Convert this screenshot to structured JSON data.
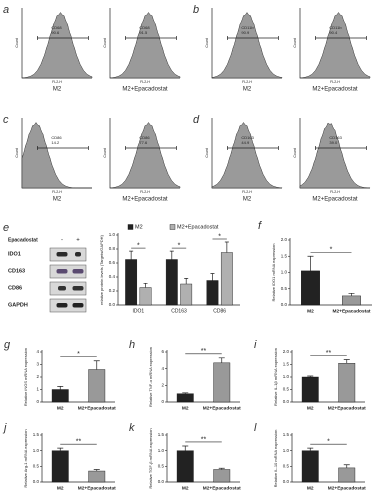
{
  "flow": [
    {
      "letter": "a",
      "ylabel": "Count",
      "xlabel": "FL2-H",
      "plots": [
        {
          "marker": "CD68",
          "percent": "90.6",
          "caption": "M2"
        },
        {
          "marker": "CD68",
          "percent": "91.5",
          "caption": "M2+Epacadostat"
        }
      ]
    },
    {
      "letter": "b",
      "ylabel": "Count",
      "xlabel": "FL2-H",
      "plots": [
        {
          "marker": "CD11b",
          "percent": "90.9",
          "caption": "M2"
        },
        {
          "marker": "CD11b",
          "percent": "90.4",
          "caption": "M2+Epacadostat"
        }
      ]
    },
    {
      "letter": "c",
      "ylabel": "Count",
      "xlabel": "FL2-H",
      "plots": [
        {
          "marker": "CD86",
          "percent": "14.2",
          "caption": "M2"
        },
        {
          "marker": "CD86",
          "percent": "77.6",
          "caption": "M2+Epacadostat"
        }
      ]
    },
    {
      "letter": "d",
      "ylabel": "Count",
      "xlabel": "FL2-H",
      "plots": [
        {
          "marker": "CD163",
          "percent": "44.9",
          "caption": "M2"
        },
        {
          "marker": "CD163",
          "percent": "39.0",
          "caption": "M2+Epacadostat"
        }
      ]
    }
  ],
  "blot": {
    "letter": "e",
    "treatment": "Epacadostat",
    "lanes": [
      "-",
      "+"
    ],
    "rows": [
      "IDO1",
      "CD163",
      "CD86",
      "GAPDH"
    ]
  },
  "chart_data": [
    {
      "type": "grouped-bar",
      "ylabel": "relative protein levels (Targets/GAPDH)",
      "categories": [
        "IDO1",
        "CD163",
        "CD86"
      ],
      "series": [
        {
          "name": "M2",
          "color": "#222222",
          "values": [
            0.65,
            0.65,
            0.35
          ],
          "errors": [
            0.12,
            0.12,
            0.1
          ]
        },
        {
          "name": "M2+Epacadostat",
          "color": "#b0b0b0",
          "values": [
            0.25,
            0.3,
            0.75
          ],
          "errors": [
            0.06,
            0.08,
            0.15
          ]
        }
      ],
      "ylim": [
        0,
        1
      ],
      "yticks": [
        {
          "value": 0,
          "label": "0.0"
        },
        {
          "value": 0.2,
          "label": "0.2"
        },
        {
          "value": 0.4,
          "label": "0.4"
        },
        {
          "value": 0.6,
          "label": "0.6"
        },
        {
          "value": 0.8,
          "label": "0.8"
        },
        {
          "value": 1,
          "label": "1.0"
        }
      ],
      "significance": [
        "*",
        "*",
        "*"
      ]
    },
    {
      "type": "bar",
      "letter": "f",
      "ylabel": "Relative IDO1 mRNA expression",
      "categories": [
        "M2",
        "M2+Epacadostat"
      ],
      "values": [
        1.05,
        0.28
      ],
      "errors": [
        0.45,
        0.08
      ],
      "colors": [
        "#222222",
        "#999999"
      ],
      "ylim": [
        0,
        2
      ],
      "yticks": [
        {
          "value": 0,
          "label": "0.0"
        },
        {
          "value": 0.5,
          "label": "0.5"
        },
        {
          "value": 1,
          "label": "1.0"
        },
        {
          "value": 1.5,
          "label": "1.5"
        },
        {
          "value": 2,
          "label": "2.0"
        }
      ],
      "significance": "*"
    },
    {
      "type": "bar",
      "letter": "g",
      "ylabel": "Relative iNOS mRNA expression",
      "categories": [
        "M2",
        "M2+Epacadostat"
      ],
      "values": [
        1.0,
        2.6
      ],
      "errors": [
        0.25,
        0.7
      ],
      "colors": [
        "#222222",
        "#999999"
      ],
      "ylim": [
        0,
        4
      ],
      "yticks": [
        0,
        1,
        2,
        3,
        4
      ],
      "significance": "*"
    },
    {
      "type": "bar",
      "letter": "h",
      "ylabel": "Relative TNF-α mRNA expression",
      "categories": [
        "M2",
        "M2+Epacadostat"
      ],
      "values": [
        1.0,
        4.7
      ],
      "errors": [
        0.1,
        0.6
      ],
      "colors": [
        "#222222",
        "#999999"
      ],
      "ylim": [
        0,
        6
      ],
      "yticks": [
        0,
        2,
        4,
        6
      ],
      "significance": "**"
    },
    {
      "type": "bar",
      "letter": "i",
      "ylabel": "Relative IL-1β mRNA expression",
      "categories": [
        "M2",
        "M2+Epacadostat"
      ],
      "values": [
        1.0,
        1.55
      ],
      "errors": [
        0.04,
        0.15
      ],
      "colors": [
        "#222222",
        "#999999"
      ],
      "ylim": [
        0,
        2
      ],
      "yticks": [
        {
          "value": 0,
          "label": "0.0"
        },
        {
          "value": 0.5,
          "label": "0.5"
        },
        {
          "value": 1,
          "label": "1.0"
        },
        {
          "value": 1.5,
          "label": "1.5"
        },
        {
          "value": 2,
          "label": "2.0"
        }
      ],
      "significance": "**"
    },
    {
      "type": "bar",
      "letter": "j",
      "ylabel": "Relative Arg-1 mRNA expression",
      "categories": [
        "M2",
        "M2+Epacadostat"
      ],
      "values": [
        1.0,
        0.35
      ],
      "errors": [
        0.08,
        0.05
      ],
      "colors": [
        "#222222",
        "#999999"
      ],
      "ylim": [
        0,
        1.5
      ],
      "yticks": [
        {
          "value": 0,
          "label": "0.0"
        },
        {
          "value": 0.5,
          "label": "0.5"
        },
        {
          "value": 1,
          "label": "1.0"
        },
        {
          "value": 1.5,
          "label": "1.5"
        }
      ],
      "significance": "**"
    },
    {
      "type": "bar",
      "letter": "k",
      "ylabel": "Relative TGF-β mRNA expression",
      "categories": [
        "M2",
        "M2+Epacadostat"
      ],
      "values": [
        1.0,
        0.4
      ],
      "errors": [
        0.15,
        0.04
      ],
      "colors": [
        "#222222",
        "#999999"
      ],
      "ylim": [
        0,
        1.5
      ],
      "yticks": [
        {
          "value": 0,
          "label": "0.0"
        },
        {
          "value": 0.5,
          "label": "0.5"
        },
        {
          "value": 1,
          "label": "1.0"
        },
        {
          "value": 1.5,
          "label": "1.5"
        }
      ],
      "significance": "**"
    },
    {
      "type": "bar",
      "letter": "l",
      "ylabel": "Relative IL-10 mRNA expression",
      "categories": [
        "M2",
        "M2+Epacadostat"
      ],
      "values": [
        1.0,
        0.45
      ],
      "errors": [
        0.08,
        0.1
      ],
      "colors": [
        "#222222",
        "#999999"
      ],
      "ylim": [
        0,
        1.5
      ],
      "yticks": [
        {
          "value": 0,
          "label": "0.0"
        },
        {
          "value": 0.5,
          "label": "0.5"
        },
        {
          "value": 1,
          "label": "1.0"
        },
        {
          "value": 1.5,
          "label": "1.5"
        }
      ],
      "significance": "*"
    }
  ]
}
